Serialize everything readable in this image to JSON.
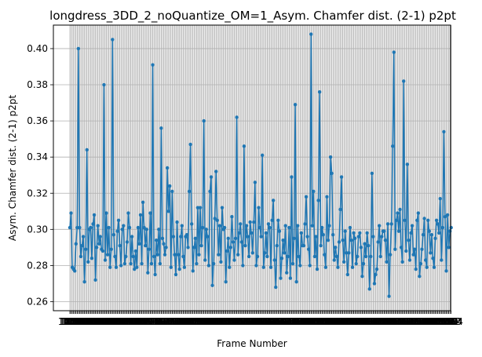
{
  "chart_data": {
    "type": "line",
    "title": "longdress_3DD_2_noQuantize_OM=1_Asym. Chamfer dist. (2-1) p2pt",
    "xlabel": "Frame Number",
    "ylabel": "Asym. Chamfer dist. (2-1) p2pt",
    "xlim": [
      1051,
      1350
    ],
    "ylim": [
      0.255,
      0.413
    ],
    "yticks": [
      0.26,
      0.28,
      0.3,
      0.32,
      0.34,
      0.36,
      0.38,
      0.4
    ],
    "ytick_labels": [
      "0.26",
      "0.28",
      "0.30",
      "0.32",
      "0.34",
      "0.36",
      "0.38",
      "0.40"
    ],
    "grid": true,
    "colors": {
      "line": "#1f77b4"
    },
    "x_start": 1051,
    "y": [
      0.301,
      0.309,
      0.279,
      0.278,
      0.277,
      0.292,
      0.301,
      0.4,
      0.301,
      0.285,
      0.291,
      0.296,
      0.271,
      0.289,
      0.344,
      0.282,
      0.3,
      0.301,
      0.284,
      0.303,
      0.308,
      0.272,
      0.29,
      0.302,
      0.292,
      0.296,
      0.289,
      0.288,
      0.38,
      0.283,
      0.309,
      0.286,
      0.301,
      0.279,
      0.289,
      0.405,
      0.297,
      0.285,
      0.279,
      0.299,
      0.305,
      0.291,
      0.28,
      0.3,
      0.302,
      0.281,
      0.285,
      0.293,
      0.309,
      0.301,
      0.281,
      0.296,
      0.285,
      0.278,
      0.288,
      0.279,
      0.301,
      0.292,
      0.308,
      0.281,
      0.315,
      0.301,
      0.291,
      0.3,
      0.276,
      0.289,
      0.309,
      0.281,
      0.391,
      0.285,
      0.275,
      0.294,
      0.286,
      0.3,
      0.281,
      0.356,
      0.295,
      0.292,
      0.286,
      0.29,
      0.334,
      0.31,
      0.324,
      0.279,
      0.321,
      0.296,
      0.286,
      0.275,
      0.304,
      0.286,
      0.278,
      0.296,
      0.302,
      0.285,
      0.279,
      0.296,
      0.297,
      0.29,
      0.321,
      0.347,
      0.303,
      0.277,
      0.29,
      0.295,
      0.281,
      0.312,
      0.286,
      0.312,
      0.291,
      0.301,
      0.36,
      0.283,
      0.3,
      0.296,
      0.28,
      0.321,
      0.329,
      0.269,
      0.281,
      0.306,
      0.332,
      0.305,
      0.286,
      0.302,
      0.282,
      0.312,
      0.3,
      0.301,
      0.271,
      0.288,
      0.295,
      0.279,
      0.29,
      0.307,
      0.293,
      0.283,
      0.295,
      0.362,
      0.286,
      0.298,
      0.303,
      0.293,
      0.28,
      0.346,
      0.291,
      0.302,
      0.296,
      0.285,
      0.304,
      0.298,
      0.287,
      0.304,
      0.326,
      0.28,
      0.285,
      0.312,
      0.301,
      0.296,
      0.341,
      0.279,
      0.287,
      0.298,
      0.285,
      0.303,
      0.301,
      0.279,
      0.305,
      0.316,
      0.283,
      0.268,
      0.291,
      0.305,
      0.299,
      0.273,
      0.284,
      0.294,
      0.287,
      0.302,
      0.276,
      0.285,
      0.301,
      0.273,
      0.329,
      0.281,
      0.295,
      0.369,
      0.271,
      0.302,
      0.285,
      0.28,
      0.298,
      0.291,
      0.291,
      0.303,
      0.318,
      0.296,
      0.289,
      0.28,
      0.408,
      0.302,
      0.321,
      0.285,
      0.296,
      0.278,
      0.316,
      0.376,
      0.291,
      0.301,
      0.297,
      0.286,
      0.279,
      0.318,
      0.294,
      0.302,
      0.34,
      0.331,
      0.297,
      0.283,
      0.29,
      0.285,
      0.279,
      0.293,
      0.311,
      0.329,
      0.294,
      0.282,
      0.299,
      0.287,
      0.275,
      0.287,
      0.301,
      0.294,
      0.279,
      0.298,
      0.295,
      0.281,
      0.285,
      0.296,
      0.298,
      0.29,
      0.274,
      0.281,
      0.292,
      0.285,
      0.298,
      0.291,
      0.267,
      0.285,
      0.331,
      0.296,
      0.27,
      0.275,
      0.278,
      0.293,
      0.302,
      0.285,
      0.296,
      0.299,
      0.299,
      0.294,
      0.282,
      0.303,
      0.263,
      0.286,
      0.303,
      0.346,
      0.398,
      0.289,
      0.305,
      0.309,
      0.299,
      0.311,
      0.29,
      0.282,
      0.382,
      0.305,
      0.288,
      0.336,
      0.294,
      0.283,
      0.298,
      0.302,
      0.286,
      0.289,
      0.278,
      0.305,
      0.309,
      0.274,
      0.281,
      0.289,
      0.297,
      0.306,
      0.283,
      0.279,
      0.305,
      0.299,
      0.287,
      0.297,
      0.284,
      0.279,
      0.295,
      0.305,
      0.303,
      0.298,
      0.317,
      0.283,
      0.301,
      0.354,
      0.307,
      0.277,
      0.308,
      0.29,
      0.299,
      0.301
    ]
  }
}
